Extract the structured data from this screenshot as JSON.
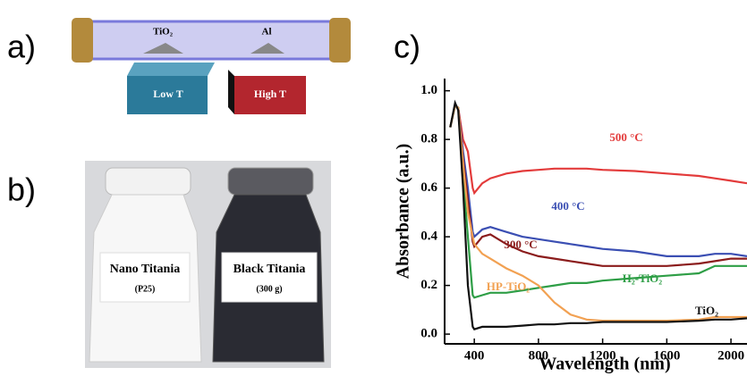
{
  "panels": {
    "a": "a)",
    "b": "b)",
    "c": "c)"
  },
  "diagram": {
    "zone_left": "TiO₂",
    "zone_right": "Al",
    "furnace_left": "Low T",
    "furnace_right": "High T"
  },
  "photo": {
    "left_label": "Nano Titania",
    "left_sublabel": "(P25)",
    "right_label": "Black Titania",
    "right_sublabel": "(300 g)"
  },
  "chart_data": {
    "type": "line",
    "x_label": "Wavelength (nm)",
    "y_label": "Absorbance (a.u.)",
    "x": [
      250,
      280,
      300,
      330,
      360,
      390,
      400,
      450,
      500,
      600,
      700,
      800,
      900,
      1000,
      1100,
      1200,
      1400,
      1600,
      1800,
      1900,
      2000,
      2100
    ],
    "xlim": [
      215,
      2100
    ],
    "xticks": [
      400,
      800,
      1200,
      1600,
      2000
    ],
    "ylim": [
      -0.04,
      1.05
    ],
    "yticks": [
      {
        "value": 0,
        "label": "0.0"
      },
      0.2,
      0.4,
      0.6,
      0.8,
      {
        "value": 1,
        "label": "1.0"
      }
    ],
    "series": [
      {
        "name": "500 °C",
        "color": "#e33b3b",
        "values": [
          0.85,
          0.94,
          0.93,
          0.8,
          0.75,
          0.6,
          0.58,
          0.62,
          0.64,
          0.66,
          0.67,
          0.675,
          0.68,
          0.68,
          0.68,
          0.675,
          0.67,
          0.66,
          0.65,
          0.64,
          0.63,
          0.62
        ]
      },
      {
        "name": "400 °C",
        "color": "#3b4fb3",
        "values": [
          0.85,
          0.94,
          0.93,
          0.75,
          0.6,
          0.42,
          0.4,
          0.43,
          0.44,
          0.42,
          0.4,
          0.39,
          0.38,
          0.37,
          0.36,
          0.35,
          0.34,
          0.32,
          0.32,
          0.33,
          0.33,
          0.32
        ]
      },
      {
        "name": "300 °C",
        "color": "#8b1c1c",
        "values": [
          0.85,
          0.94,
          0.93,
          0.72,
          0.55,
          0.38,
          0.36,
          0.4,
          0.41,
          0.37,
          0.34,
          0.32,
          0.31,
          0.3,
          0.29,
          0.28,
          0.28,
          0.28,
          0.29,
          0.3,
          0.31,
          0.31
        ]
      },
      {
        "name": "H₂-TiO₂",
        "color": "#2e9e46",
        "values": [
          0.85,
          0.94,
          0.93,
          0.65,
          0.4,
          0.16,
          0.15,
          0.16,
          0.17,
          0.17,
          0.18,
          0.19,
          0.2,
          0.21,
          0.21,
          0.22,
          0.23,
          0.24,
          0.25,
          0.28,
          0.28,
          0.28
        ]
      },
      {
        "name": "HP-TiO₂",
        "color": "#f2a152",
        "values": [
          0.85,
          0.94,
          0.93,
          0.7,
          0.5,
          0.4,
          0.37,
          0.33,
          0.31,
          0.27,
          0.24,
          0.2,
          0.13,
          0.08,
          0.06,
          0.055,
          0.055,
          0.055,
          0.06,
          0.07,
          0.07,
          0.07
        ]
      },
      {
        "name": "TiO₂",
        "color": "#111111",
        "values": [
          0.85,
          0.95,
          0.92,
          0.6,
          0.2,
          0.03,
          0.02,
          0.03,
          0.03,
          0.03,
          0.035,
          0.04,
          0.04,
          0.045,
          0.045,
          0.05,
          0.05,
          0.05,
          0.055,
          0.06,
          0.06,
          0.065
        ]
      }
    ]
  }
}
